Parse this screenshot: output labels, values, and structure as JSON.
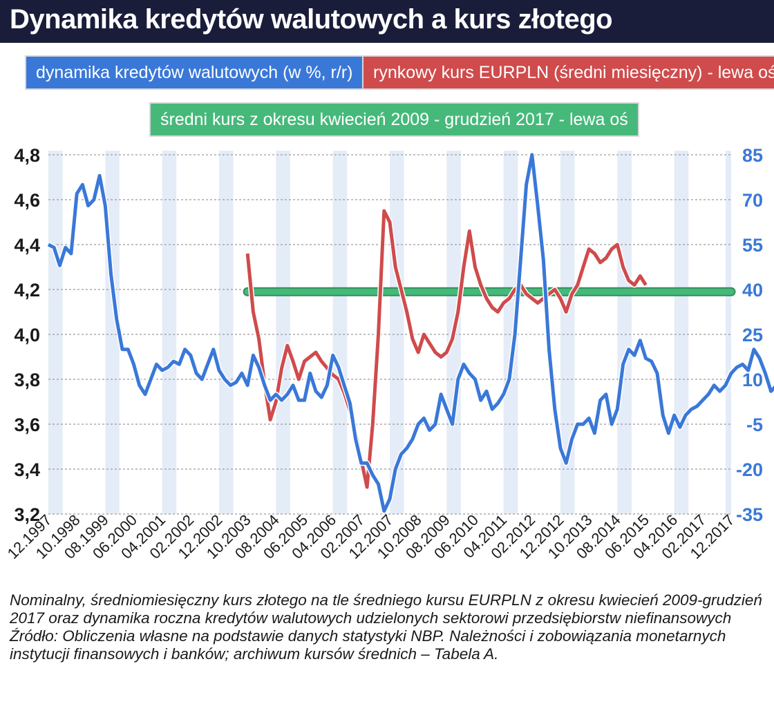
{
  "title": "Dynamika kredytów walutowych a kurs złotego",
  "legend": {
    "blue": "dynamika kredytów walutowych (w %, r/r)",
    "red": "rynkowy kurs EURPLN (średni miesięczny) - lewa oś",
    "green": "średni kurs z okresu kwiecień 2009 - grudzień 2017 - lewa oś"
  },
  "caption": {
    "line1": "Nominalny, średniomiesięczny kurs złotego na tle średniego kursu EURPLN z okresu kwiecień 2009-grudzień 2017 oraz dynamika roczna kredytów walutowych udzielonych sektorowi przedsiębiorstw niefinansowych",
    "line2": "Źródło: Obliczenia własne na podstawie danych statystyki NBP. Należności i zobowiązania monetarnych instytucji finansowych i banków; archiwum kursów średnich – Tabela A."
  },
  "chart_data": {
    "type": "line",
    "colors": {
      "blue": "#3a78d8",
      "red": "#cf4b4c",
      "green": "#46b97a",
      "band": "#e4ecf8"
    },
    "left_axis": {
      "ticks": [
        "3,2",
        "3,4",
        "3,6",
        "3,8",
        "4,0",
        "4,2",
        "4,4",
        "4,6",
        "4,8"
      ],
      "ylim": [
        3.2,
        4.8
      ]
    },
    "right_axis": {
      "ticks": [
        "-35",
        "-20",
        "-5",
        "10",
        "25",
        "40",
        "55",
        "70",
        "85"
      ],
      "ylim": [
        -35,
        85
      ]
    },
    "x_ticks": [
      "12.1997",
      "10.1998",
      "08.1999",
      "06.2000",
      "04.2001",
      "02.2002",
      "12.2002",
      "10.2003",
      "08.2004",
      "06.2005",
      "04.2006",
      "02.2007",
      "12.2007",
      "10.2008",
      "08.2009",
      "06.2010",
      "04.2011",
      "02.2012",
      "12.2012",
      "10.2013",
      "08.2014",
      "06.2015",
      "04.2016",
      "02.2017",
      "12.2017"
    ],
    "series": [
      {
        "key": "blue",
        "axis": "right",
        "start": "12.1997",
        "step_months": 2,
        "values": [
          55,
          54,
          48,
          54,
          52,
          72,
          75,
          68,
          70,
          78,
          68,
          45,
          30,
          20,
          20,
          15,
          8,
          5,
          10,
          15,
          13,
          14,
          16,
          15,
          20,
          18,
          12,
          10,
          15,
          20,
          13,
          10,
          8,
          9,
          12,
          8,
          18,
          14,
          8,
          3,
          5,
          3,
          5,
          8,
          3,
          3,
          12,
          6,
          4,
          8,
          18,
          14,
          8,
          2,
          -10,
          -18,
          -18,
          -22,
          -25,
          -34,
          -30,
          -20,
          -15,
          -13,
          -10,
          -5,
          -3,
          -7,
          -5,
          5,
          0,
          -5,
          10,
          15,
          12,
          10,
          3,
          6,
          0,
          2,
          5,
          10,
          25,
          50,
          75,
          85,
          68,
          50,
          20,
          0,
          -13,
          -18,
          -10,
          -5,
          -5,
          -3,
          -8,
          3,
          5,
          -5,
          0,
          15,
          20,
          18,
          23,
          17,
          16,
          12,
          -2,
          -8,
          -2,
          -6,
          -2,
          0,
          1,
          3,
          5,
          8,
          6,
          8,
          12,
          14,
          15,
          13,
          20,
          17,
          12,
          6,
          8,
          12,
          18,
          23,
          17,
          12,
          8,
          0,
          0,
          -3,
          -5,
          -2,
          -4,
          -5,
          -4,
          -9,
          -6
        ],
        "name": "dynamika kredytów walutowych (w %, r/r)"
      },
      {
        "key": "red",
        "axis": "left",
        "start": "10.2003",
        "step_months": 2,
        "values": [
          4.36,
          4.1,
          3.98,
          3.78,
          3.62,
          3.7,
          3.85,
          3.95,
          3.88,
          3.8,
          3.88,
          3.9,
          3.92,
          3.88,
          3.85,
          3.82,
          3.8,
          3.74,
          3.66,
          3.56,
          3.44,
          3.32,
          3.6,
          4.0,
          4.55,
          4.5,
          4.3,
          4.2,
          4.1,
          3.98,
          3.92,
          4.0,
          3.96,
          3.92,
          3.9,
          3.92,
          3.98,
          4.1,
          4.3,
          4.46,
          4.3,
          4.22,
          4.16,
          4.12,
          4.1,
          4.14,
          4.16,
          4.2,
          4.22,
          4.18,
          4.16,
          4.14,
          4.16,
          4.18,
          4.2,
          4.16,
          4.1,
          4.18,
          4.22,
          4.3,
          4.38,
          4.36,
          4.32,
          4.34,
          4.38,
          4.4,
          4.3,
          4.24,
          4.22,
          4.26,
          4.22
        ]
      },
      {
        "key": "green",
        "axis": "left",
        "values": [
          4.19
        ],
        "x_range": [
          "10.2003",
          "12.2017"
        ]
      }
    ]
  }
}
